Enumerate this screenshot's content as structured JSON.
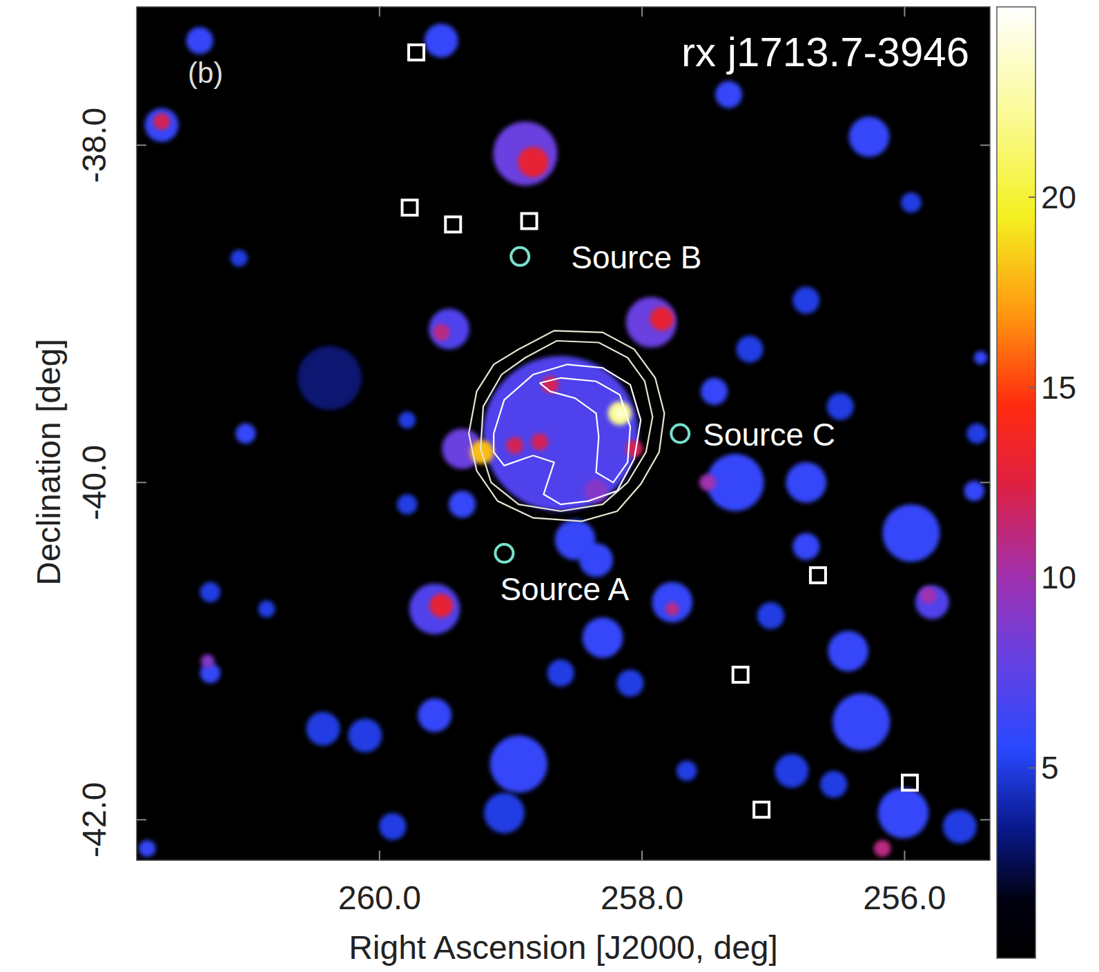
{
  "chart_data": {
    "type": "heatmap",
    "title": "rx j1713.7-3946",
    "panel": "(b)",
    "x_label": "Right Ascension [J2000, deg]",
    "y_label": "Declination [deg]",
    "xlim": [
      261.85,
      255.35
    ],
    "ylim": [
      -42.24,
      -37.18
    ],
    "xticks": [
      {
        "value": 260,
        "label": "260.0"
      },
      {
        "value": 258,
        "label": "258.0"
      },
      {
        "value": 256,
        "label": "256.0"
      }
    ],
    "yticks": [
      {
        "value": -38,
        "label": "-38.0"
      },
      {
        "value": -40,
        "label": "-40.0"
      },
      {
        "value": -42,
        "label": "-42.0"
      }
    ],
    "colorbar": {
      "range": [
        0,
        25
      ],
      "ticks": [
        5,
        10,
        15,
        20
      ]
    },
    "emission": [
      {
        "ra": 260.38,
        "dec": -39.38,
        "radius": 0.19,
        "value": 3
      },
      {
        "ra": 256.49,
        "dec": -39.55,
        "radius": 0.08,
        "value": 5
      },
      {
        "ra": 255.58,
        "dec": -42.04,
        "radius": 0.1,
        "value": 5
      },
      {
        "ra": 260.11,
        "dec": -41.5,
        "radius": 0.1,
        "value": 5
      },
      {
        "ra": 260.43,
        "dec": -41.46,
        "radius": 0.1,
        "value": 5
      },
      {
        "ra": 259.9,
        "dec": -42.04,
        "radius": 0.08,
        "value": 5
      },
      {
        "ra": 259.05,
        "dec": -41.96,
        "radius": 0.12,
        "value": 5
      },
      {
        "ra": 256.86,
        "dec": -41.71,
        "radius": 0.1,
        "value": 5
      },
      {
        "ra": 256.54,
        "dec": -41.79,
        "radius": 0.08,
        "value": 5
      },
      {
        "ra": 257.02,
        "dec": -40.79,
        "radius": 0.08,
        "value": 5
      },
      {
        "ra": 261.07,
        "dec": -38.67,
        "radius": 0.05,
        "value": 5
      },
      {
        "ra": 257.18,
        "dec": -39.21,
        "radius": 0.08,
        "value": 5
      },
      {
        "ra": 255.45,
        "dec": -39.71,
        "radius": 0.06,
        "value": 5
      },
      {
        "ra": 261.29,
        "dec": -40.65,
        "radius": 0.06,
        "value": 5
      },
      {
        "ra": 260.86,
        "dec": -40.75,
        "radius": 0.05,
        "value": 5
      },
      {
        "ra": 258.62,
        "dec": -41.13,
        "radius": 0.08,
        "value": 5
      },
      {
        "ra": 258.09,
        "dec": -41.19,
        "radius": 0.08,
        "value": 5
      },
      {
        "ra": 257.66,
        "dec": -41.71,
        "radius": 0.06,
        "value": 5
      },
      {
        "ra": 259.79,
        "dec": -40.13,
        "radius": 0.06,
        "value": 5
      },
      {
        "ra": 259.79,
        "dec": -39.63,
        "radius": 0.05,
        "value": 5
      },
      {
        "ra": 256.75,
        "dec": -38.92,
        "radius": 0.08,
        "value": 5
      },
      {
        "ra": 255.95,
        "dec": -38.34,
        "radius": 0.06,
        "value": 5
      },
      {
        "ra": 257.34,
        "dec": -37.7,
        "radius": 0.08,
        "value": 6
      },
      {
        "ra": 259.53,
        "dec": -37.38,
        "radius": 0.1,
        "value": 6
      },
      {
        "ra": 261.37,
        "dec": -37.38,
        "radius": 0.08,
        "value": 6
      },
      {
        "ra": 261.66,
        "dec": -37.88,
        "radius": 0.1,
        "value": 6
      },
      {
        "ra": 256.27,
        "dec": -37.95,
        "radius": 0.12,
        "value": 6
      },
      {
        "ra": 257.29,
        "dec": -40.0,
        "radius": 0.17,
        "value": 6
      },
      {
        "ra": 256.75,
        "dec": -40.0,
        "radius": 0.12,
        "value": 6
      },
      {
        "ra": 255.95,
        "dec": -40.3,
        "radius": 0.17,
        "value": 6
      },
      {
        "ra": 256.43,
        "dec": -41.0,
        "radius": 0.12,
        "value": 6
      },
      {
        "ra": 256.33,
        "dec": -41.42,
        "radius": 0.17,
        "value": 6
      },
      {
        "ra": 256.01,
        "dec": -41.96,
        "radius": 0.15,
        "value": 6
      },
      {
        "ra": 258.3,
        "dec": -40.92,
        "radius": 0.12,
        "value": 6
      },
      {
        "ra": 257.77,
        "dec": -40.71,
        "radius": 0.12,
        "value": 6
      },
      {
        "ra": 258.35,
        "dec": -40.46,
        "radius": 0.1,
        "value": 6
      },
      {
        "ra": 258.94,
        "dec": -41.67,
        "radius": 0.17,
        "value": 6
      },
      {
        "ra": 259.58,
        "dec": -41.38,
        "radius": 0.1,
        "value": 6
      },
      {
        "ra": 256.75,
        "dec": -40.38,
        "radius": 0.08,
        "value": 6
      },
      {
        "ra": 261.02,
        "dec": -39.71,
        "radius": 0.06,
        "value": 6
      },
      {
        "ra": 257.45,
        "dec": -39.46,
        "radius": 0.08,
        "value": 6
      },
      {
        "ra": 255.42,
        "dec": -39.26,
        "radius": 0.04,
        "value": 6
      },
      {
        "ra": 255.47,
        "dec": -40.05,
        "radius": 0.06,
        "value": 6
      },
      {
        "ra": 261.29,
        "dec": -41.13,
        "radius": 0.06,
        "value": 6
      },
      {
        "ra": 259.37,
        "dec": -40.13,
        "radius": 0.08,
        "value": 6
      },
      {
        "ra": 258.51,
        "dec": -40.34,
        "radius": 0.12,
        "value": 6
      },
      {
        "ra": 261.77,
        "dec": -42.17,
        "radius": 0.05,
        "value": 6
      },
      {
        "ra": 259.47,
        "dec": -39.09,
        "radius": 0.12,
        "value": 7
      },
      {
        "ra": 259.58,
        "dec": -40.75,
        "radius": 0.15,
        "value": 7
      },
      {
        "ra": 258.62,
        "dec": -39.71,
        "radius": 0.46,
        "value": 7
      },
      {
        "ra": 255.79,
        "dec": -40.71,
        "radius": 0.1,
        "value": 7
      },
      {
        "ra": 258.89,
        "dec": -38.05,
        "radius": 0.19,
        "value": 8
      },
      {
        "ra": 257.93,
        "dec": -39.05,
        "radius": 0.15,
        "value": 8
      },
      {
        "ra": 259.37,
        "dec": -39.8,
        "radius": 0.12,
        "value": 8
      },
      {
        "ra": 261.31,
        "dec": -41.06,
        "radius": 0.04,
        "value": 9
      },
      {
        "ra": 258.35,
        "dec": -40.05,
        "radius": 0.07,
        "value": 9
      },
      {
        "ra": 255.82,
        "dec": -40.67,
        "radius": 0.05,
        "value": 10
      },
      {
        "ra": 257.5,
        "dec": -40.0,
        "radius": 0.05,
        "value": 10
      },
      {
        "ra": 259.53,
        "dec": -39.11,
        "radius": 0.05,
        "value": 11
      },
      {
        "ra": 257.77,
        "dec": -40.75,
        "radius": 0.04,
        "value": 11
      },
      {
        "ra": 256.17,
        "dec": -42.17,
        "radius": 0.05,
        "value": 11
      },
      {
        "ra": 258.7,
        "dec": -39.42,
        "radius": 0.05,
        "value": 12
      },
      {
        "ra": 258.97,
        "dec": -39.78,
        "radius": 0.05,
        "value": 12
      },
      {
        "ra": 258.78,
        "dec": -39.76,
        "radius": 0.05,
        "value": 12
      },
      {
        "ra": 258.06,
        "dec": -39.8,
        "radius": 0.05,
        "value": 12
      },
      {
        "ra": 261.66,
        "dec": -37.86,
        "radius": 0.05,
        "value": 12
      },
      {
        "ra": 258.83,
        "dec": -38.1,
        "radius": 0.09,
        "value": 13
      },
      {
        "ra": 257.85,
        "dec": -39.03,
        "radius": 0.07,
        "value": 13
      },
      {
        "ra": 259.53,
        "dec": -40.73,
        "radius": 0.07,
        "value": 13
      },
      {
        "ra": 259.22,
        "dec": -39.82,
        "radius": 0.07,
        "value": 18
      },
      {
        "ra": 258.17,
        "dec": -39.59,
        "radius": 0.07,
        "value": 22
      },
      {
        "ra": 258.17,
        "dec": -39.59,
        "radius": 0.03,
        "value": 24
      }
    ],
    "contours": [
      [
        [
          258.94,
          -39.21
        ],
        [
          258.67,
          -39.1
        ],
        [
          258.3,
          -39.11
        ],
        [
          258.06,
          -39.21
        ],
        [
          257.9,
          -39.38
        ],
        [
          257.83,
          -39.59
        ],
        [
          257.87,
          -39.82
        ],
        [
          258.01,
          -40.01
        ],
        [
          258.19,
          -40.17
        ],
        [
          258.46,
          -40.23
        ],
        [
          258.83,
          -40.21
        ],
        [
          259.1,
          -40.11
        ],
        [
          259.26,
          -39.93
        ],
        [
          259.32,
          -39.71
        ],
        [
          259.26,
          -39.46
        ],
        [
          259.13,
          -39.3
        ],
        [
          258.94,
          -39.21
        ]
      ],
      [
        [
          258.89,
          -39.26
        ],
        [
          258.65,
          -39.16
        ],
        [
          258.33,
          -39.17
        ],
        [
          258.11,
          -39.26
        ],
        [
          257.98,
          -39.4
        ],
        [
          257.92,
          -39.61
        ],
        [
          257.97,
          -39.82
        ],
        [
          258.11,
          -40.0
        ],
        [
          258.3,
          -40.13
        ],
        [
          258.62,
          -40.17
        ],
        [
          258.94,
          -40.13
        ],
        [
          259.15,
          -40.0
        ],
        [
          259.23,
          -39.8
        ],
        [
          259.21,
          -39.55
        ],
        [
          259.07,
          -39.36
        ],
        [
          258.89,
          -39.26
        ]
      ],
      [
        [
          259.13,
          -39.71
        ],
        [
          259.05,
          -39.51
        ],
        [
          258.83,
          -39.36
        ],
        [
          258.57,
          -39.3
        ],
        [
          258.3,
          -39.32
        ],
        [
          258.09,
          -39.42
        ],
        [
          258.01,
          -39.63
        ],
        [
          258.06,
          -39.86
        ],
        [
          258.19,
          -40.05
        ],
        [
          258.41,
          -40.11
        ],
        [
          258.62,
          -40.13
        ],
        [
          258.75,
          -40.07
        ],
        [
          258.67,
          -39.88
        ],
        [
          258.83,
          -39.84
        ],
        [
          259.05,
          -39.9
        ],
        [
          259.13,
          -39.82
        ],
        [
          259.13,
          -39.71
        ]
      ],
      [
        [
          258.78,
          -39.41
        ],
        [
          258.62,
          -39.38
        ],
        [
          258.35,
          -39.4
        ],
        [
          258.17,
          -39.48
        ],
        [
          258.09,
          -39.67
        ],
        [
          258.11,
          -39.88
        ],
        [
          258.22,
          -40.0
        ],
        [
          258.35,
          -39.94
        ],
        [
          258.33,
          -39.73
        ],
        [
          258.35,
          -39.59
        ],
        [
          258.51,
          -39.5
        ],
        [
          258.7,
          -39.46
        ],
        [
          258.78,
          -39.41
        ]
      ]
    ],
    "squares": [
      {
        "ra": 259.72,
        "dec": -37.45
      },
      {
        "ra": 259.77,
        "dec": -38.37
      },
      {
        "ra": 259.44,
        "dec": -38.47
      },
      {
        "ra": 258.86,
        "dec": -38.45
      },
      {
        "ra": 256.66,
        "dec": -40.55
      },
      {
        "ra": 257.25,
        "dec": -41.14
      },
      {
        "ra": 255.96,
        "dec": -41.78
      },
      {
        "ra": 257.09,
        "dec": -41.94
      }
    ],
    "sources": [
      {
        "label": "Source A",
        "ra": 259.05,
        "dec": -40.42
      },
      {
        "label": "Source B",
        "ra": 258.93,
        "dec": -38.66
      },
      {
        "label": "Source C",
        "ra": 257.71,
        "dec": -39.71
      }
    ]
  }
}
